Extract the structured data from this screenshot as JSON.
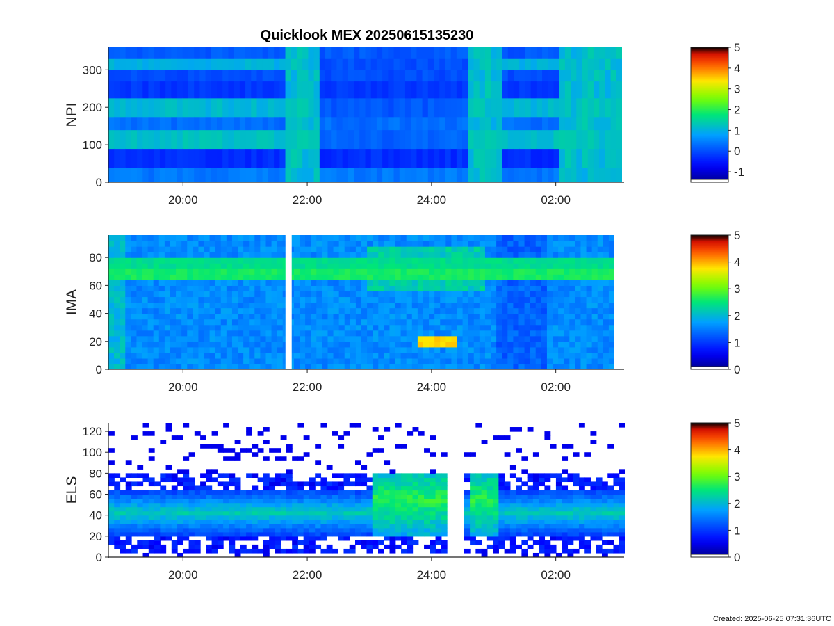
{
  "footer": "Created: 2025-06-25 07:31:36UTC",
  "chart_data": [
    {
      "type": "heatmap",
      "title": "Quicklook MEX 20250615135230",
      "ylabel": "NPI",
      "xlabel": "",
      "x_ticks": [
        "20:00",
        "22:00",
        "24:00",
        "02:00"
      ],
      "x_tick_hours": [
        20,
        22,
        24,
        26
      ],
      "x_range_hours": [
        18.8,
        27.1
      ],
      "ylim": [
        0,
        360
      ],
      "y_ticks": [
        0,
        100,
        200,
        300
      ],
      "colorbar": {
        "range": [
          -1.5,
          5
        ],
        "ticks": [
          -1,
          0,
          1,
          2,
          3,
          4,
          5
        ]
      },
      "bands": [
        {
          "y": [
            0,
            40
          ],
          "level": 0.4
        },
        {
          "y": [
            40,
            90
          ],
          "level": -0.3
        },
        {
          "y": [
            90,
            140
          ],
          "level": 1.2
        },
        {
          "y": [
            140,
            175
          ],
          "level": 0.3
        },
        {
          "y": [
            175,
            225
          ],
          "level": 1.1
        },
        {
          "y": [
            225,
            270
          ],
          "level": -0.2
        },
        {
          "y": [
            270,
            300
          ],
          "level": 0.0
        },
        {
          "y": [
            300,
            330
          ],
          "level": 1.0
        },
        {
          "y": [
            330,
            360
          ],
          "level": 0.1
        }
      ]
    },
    {
      "type": "heatmap",
      "ylabel": "IMA",
      "xlabel": "",
      "x_ticks": [
        "20:00",
        "22:00",
        "24:00",
        "02:00"
      ],
      "x_tick_hours": [
        20,
        22,
        24,
        26
      ],
      "x_range_hours": [
        18.8,
        27.1
      ],
      "ylim": [
        0,
        96
      ],
      "y_ticks": [
        0,
        20,
        40,
        60,
        80
      ],
      "colorbar": {
        "range": [
          0,
          5
        ],
        "ticks": [
          0,
          1,
          2,
          3,
          4,
          5
        ]
      },
      "background_level": 1.6,
      "data_gap_hours": [
        21.65,
        21.75
      ],
      "features": [
        {
          "name": "band",
          "y": [
            66,
            72
          ],
          "level": 2.6
        },
        {
          "name": "band",
          "y": [
            74,
            78
          ],
          "level": 2.4
        },
        {
          "name": "burst",
          "y": [
            17,
            23
          ],
          "level": 3.8,
          "x_hours": [
            23.9,
            24.5
          ]
        }
      ]
    },
    {
      "type": "heatmap",
      "ylabel": "ELS",
      "xlabel": "",
      "x_ticks": [
        "20:00",
        "22:00",
        "24:00",
        "02:00"
      ],
      "x_tick_hours": [
        20,
        22,
        24,
        26
      ],
      "x_range_hours": [
        18.8,
        27.1
      ],
      "ylim": [
        0,
        128
      ],
      "y_ticks": [
        0,
        20,
        40,
        60,
        80,
        100,
        120
      ],
      "colorbar": {
        "range": [
          0,
          5
        ],
        "ticks": [
          0,
          1,
          2,
          3,
          4,
          5
        ]
      },
      "core_band": [
        20,
        65
      ],
      "peak_level": 2.2,
      "features": [
        {
          "name": "enhanced",
          "x_hours": [
            23.0,
            24.2
          ],
          "y": [
            20,
            80
          ],
          "level": 2.7
        },
        {
          "name": "enhanced",
          "x_hours": [
            24.6,
            25.1
          ],
          "y": [
            20,
            80
          ],
          "level": 2.7
        },
        {
          "name": "gap",
          "x_hours": [
            24.25,
            24.5
          ]
        }
      ]
    }
  ]
}
